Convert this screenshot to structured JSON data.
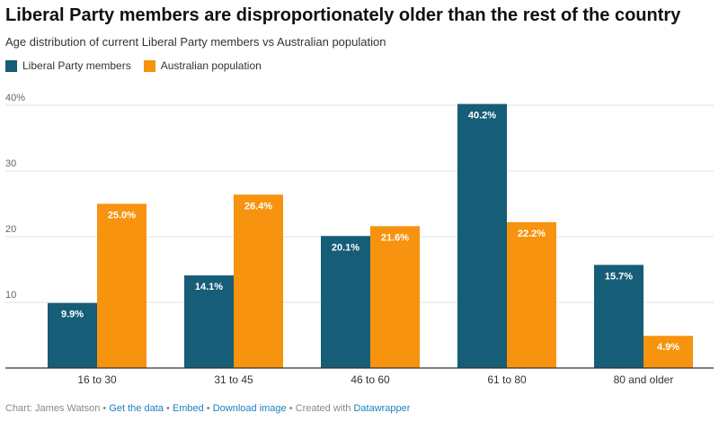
{
  "header": {
    "title": "Liberal Party members are disproportionately older than the rest of the country",
    "subtitle": "Age distribution of current Liberal Party members vs Australian population"
  },
  "colors": {
    "liberal": "#165d78",
    "population": "#f7930e",
    "grid": "#e2e2e2",
    "axis": "#333333"
  },
  "chart_data": {
    "type": "bar",
    "title": "Liberal Party members are disproportionately older than the rest of the country",
    "subtitle": "Age distribution of current Liberal Party members vs Australian population",
    "xlabel": "",
    "ylabel": "",
    "categories": [
      "16 to 30",
      "31 to 45",
      "46 to 60",
      "61 to 80",
      "80 and older"
    ],
    "series": [
      {
        "name": "Liberal Party members",
        "values": [
          9.9,
          14.1,
          20.1,
          40.2,
          15.7
        ],
        "labels": [
          "9.9%",
          "14.1%",
          "20.1%",
          "40.2%",
          "15.7%"
        ]
      },
      {
        "name": "Australian population",
        "values": [
          25.0,
          26.4,
          21.6,
          22.2,
          4.9
        ],
        "labels": [
          "25.0%",
          "26.4%",
          "21.6%",
          "22.2%",
          "4.9%"
        ]
      }
    ],
    "ylim": [
      0,
      40
    ],
    "yticks": [
      10,
      20,
      30,
      40
    ],
    "ytick_labels": [
      "10",
      "20",
      "30",
      "40%"
    ],
    "grid": true,
    "legend_position": "top-left"
  },
  "footer": {
    "credit": "Chart: James Watson",
    "sep": "•",
    "get_data": "Get the data",
    "embed": "Embed",
    "download": "Download image",
    "created_with": "Created with",
    "tool": "Datawrapper"
  }
}
